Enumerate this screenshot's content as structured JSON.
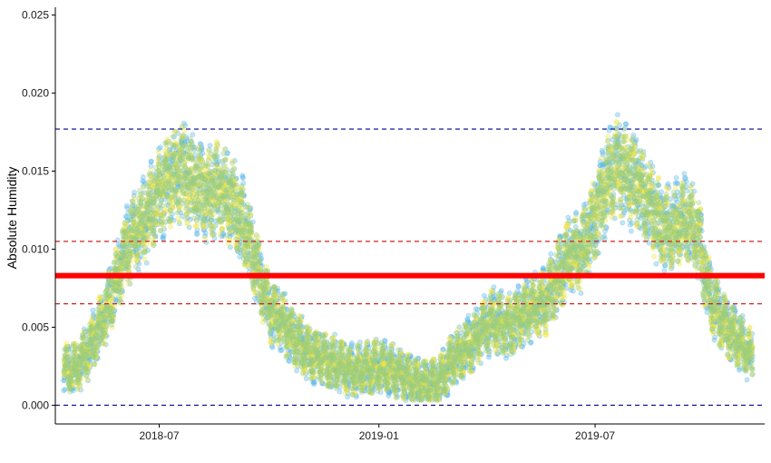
{
  "chart_data": {
    "type": "scatter",
    "title": "",
    "xlabel": "",
    "ylabel": "Absolute Humidity",
    "x_range": [
      "2018-04-05",
      "2019-11-20"
    ],
    "ylim": [
      -0.0012,
      0.0255
    ],
    "grid": false,
    "legend": "none",
    "x_ticks": [
      {
        "label": "2018-07",
        "value": "2018-07-01"
      },
      {
        "label": "2019-01",
        "value": "2019-01-01"
      },
      {
        "label": "2019-07",
        "value": "2019-07-01"
      }
    ],
    "y_ticks": [
      {
        "label": "0.000",
        "value": 0.0
      },
      {
        "label": "0.005",
        "value": 0.005
      },
      {
        "label": "0.010",
        "value": 0.01
      },
      {
        "label": "0.015",
        "value": 0.015
      },
      {
        "label": "0.020",
        "value": 0.02
      },
      {
        "label": "0.025",
        "value": 0.025
      }
    ],
    "data_range": [
      "2018-04-12",
      "2019-11-10"
    ],
    "series": [
      {
        "color": "#56B4E9",
        "jitter": 0.0016
      },
      {
        "color": "#F0E442",
        "jitter": 0.0014
      },
      {
        "color": "#9ACD7E",
        "jitter": 0.0012
      }
    ],
    "trend_points": [
      [
        "2018-04-12",
        0.0022
      ],
      [
        "2018-04-22",
        0.0024
      ],
      [
        "2018-05-02",
        0.0034
      ],
      [
        "2018-05-12",
        0.005
      ],
      [
        "2018-05-22",
        0.007
      ],
      [
        "2018-06-01",
        0.0095
      ],
      [
        "2018-06-10",
        0.0112
      ],
      [
        "2018-06-20",
        0.012
      ],
      [
        "2018-07-01",
        0.0135
      ],
      [
        "2018-07-10",
        0.0145
      ],
      [
        "2018-07-20",
        0.015
      ],
      [
        "2018-08-01",
        0.014
      ],
      [
        "2018-08-10",
        0.0135
      ],
      [
        "2018-08-20",
        0.014
      ],
      [
        "2018-09-01",
        0.013
      ],
      [
        "2018-09-10",
        0.0115
      ],
      [
        "2018-09-20",
        0.009
      ],
      [
        "2018-10-01",
        0.0062
      ],
      [
        "2018-10-10",
        0.0055
      ],
      [
        "2018-10-20",
        0.0045
      ],
      [
        "2018-11-01",
        0.0035
      ],
      [
        "2018-11-20",
        0.0028
      ],
      [
        "2018-12-10",
        0.0022
      ],
      [
        "2019-01-01",
        0.0025
      ],
      [
        "2019-01-20",
        0.002
      ],
      [
        "2019-02-05",
        0.0013
      ],
      [
        "2019-02-20",
        0.0015
      ],
      [
        "2019-03-05",
        0.003
      ],
      [
        "2019-03-20",
        0.004
      ],
      [
        "2019-04-05",
        0.0055
      ],
      [
        "2019-04-20",
        0.005
      ],
      [
        "2019-05-05",
        0.006
      ],
      [
        "2019-05-20",
        0.0065
      ],
      [
        "2019-06-01",
        0.0085
      ],
      [
        "2019-06-10",
        0.0095
      ],
      [
        "2019-06-20",
        0.01
      ],
      [
        "2019-07-01",
        0.012
      ],
      [
        "2019-07-10",
        0.014
      ],
      [
        "2019-07-20",
        0.0155
      ],
      [
        "2019-08-01",
        0.0145
      ],
      [
        "2019-08-15",
        0.013
      ],
      [
        "2019-08-25",
        0.0115
      ],
      [
        "2019-09-05",
        0.0115
      ],
      [
        "2019-09-15",
        0.012
      ],
      [
        "2019-09-25",
        0.011
      ],
      [
        "2019-10-05",
        0.007
      ],
      [
        "2019-10-15",
        0.0055
      ],
      [
        "2019-10-25",
        0.0045
      ],
      [
        "2019-11-10",
        0.003
      ]
    ],
    "reference_lines": [
      {
        "y": 0.0083,
        "color": "#ff0000",
        "style": "solid",
        "width": "thick"
      },
      {
        "y": 0.0105,
        "color": "#cc2222",
        "style": "dashed",
        "width": "thin"
      },
      {
        "y": 0.0065,
        "color": "#cc2222",
        "style": "dashed",
        "width": "thin"
      },
      {
        "y": 0.0177,
        "color": "#1a1a9a",
        "style": "dashed",
        "width": "thin"
      },
      {
        "y": 0.0,
        "color": "#1a1a9a",
        "style": "dashed",
        "width": "thin"
      }
    ]
  }
}
